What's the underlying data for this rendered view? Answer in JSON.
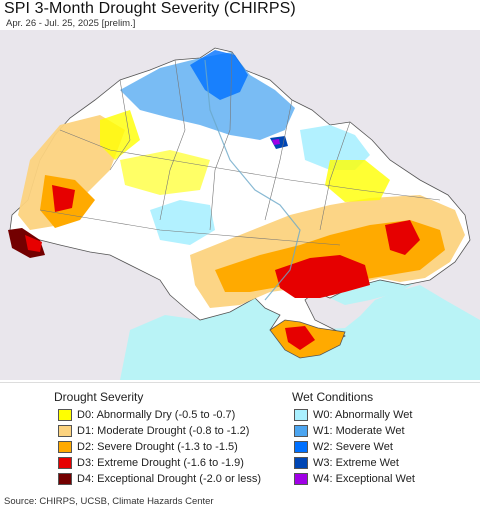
{
  "title": "SPI 3-Month Drought Severity (CHIRPS)",
  "subtitle": "Apr. 26 - Jul. 25, 2025 [prelim.]",
  "source": "Source: CHIRPS, UCSB, Climate Hazards Center",
  "colors": {
    "sea": "#b9f3f6",
    "neighbor": "#e9e6ec",
    "land": "#ffffff",
    "border": "#555555"
  },
  "legend": {
    "drought": {
      "heading": "Drought Severity",
      "items": [
        {
          "label": "D0: Abnormally Dry (-0.5 to -0.7)",
          "color": "#ffff00"
        },
        {
          "label": "D1: Moderate Drought (-0.8 to -1.2)",
          "color": "#fcd37f"
        },
        {
          "label": "D2: Severe Drought (-1.3 to -1.5)",
          "color": "#ffaa00"
        },
        {
          "label": "D3: Extreme Drought (-1.6 to -1.9)",
          "color": "#e60000"
        },
        {
          "label": "D4: Exceptional Drought (-2.0 or less)",
          "color": "#730000"
        }
      ]
    },
    "wet": {
      "heading": "Wet Conditions",
      "items": [
        {
          "label": "W0: Abnormally Wet",
          "color": "#aaf0ff"
        },
        {
          "label": "W1: Moderate Wet",
          "color": "#4ca5f0"
        },
        {
          "label": "W2: Severe Wet",
          "color": "#0070ff"
        },
        {
          "label": "W3: Extreme Wet",
          "color": "#0046b4"
        },
        {
          "label": "W4: Exceptional Wet",
          "color": "#a000e6"
        }
      ]
    }
  }
}
